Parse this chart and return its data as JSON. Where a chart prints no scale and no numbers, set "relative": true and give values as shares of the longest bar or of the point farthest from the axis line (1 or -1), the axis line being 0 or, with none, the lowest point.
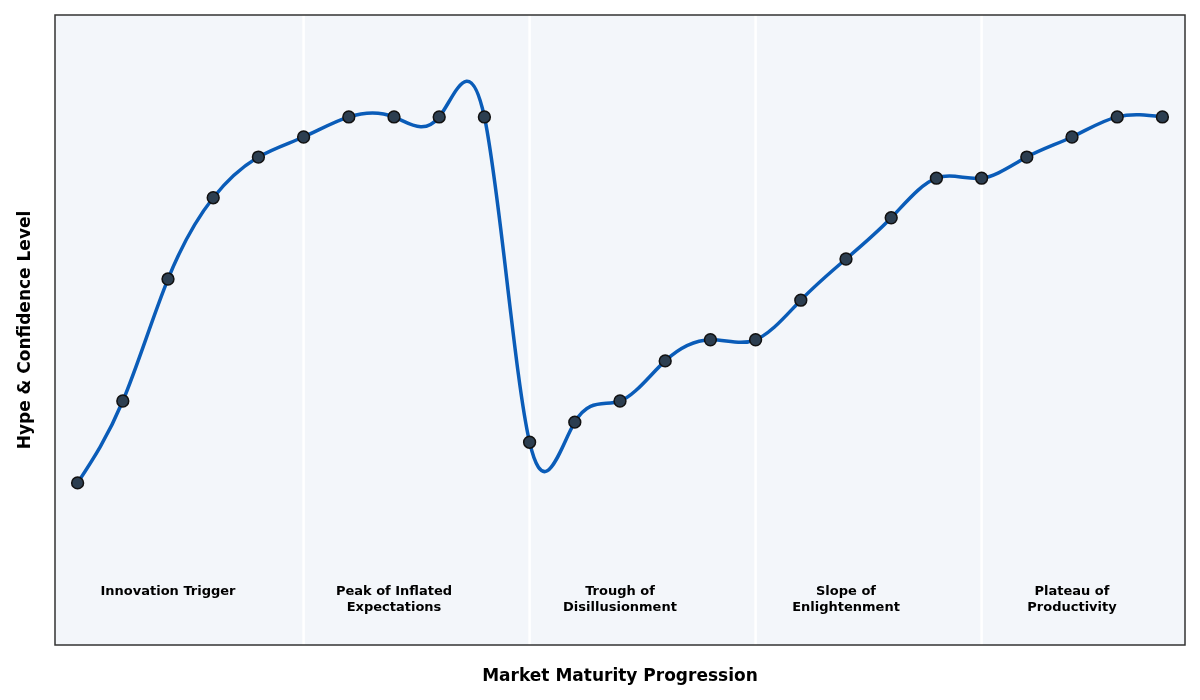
{
  "chart_data": {
    "type": "line",
    "relative": true,
    "xlabel": "Market Maturity Progression",
    "ylabel": "Hype & Confidence Level",
    "categories": [
      null,
      null,
      null,
      null,
      null,
      null,
      null,
      null,
      null,
      null,
      null,
      null,
      null,
      null,
      null,
      null,
      null,
      null,
      null,
      null,
      null,
      null,
      null,
      null,
      null
    ],
    "series": [
      {
        "color": "#0a5cb8",
        "values": [
          0.307,
          0.462,
          0.693,
          0.847,
          0.924,
          0.962,
          1,
          1,
          1,
          1,
          0.384,
          0.422,
          0.462,
          0.538,
          0.578,
          0.578,
          0.653,
          0.731,
          0.809,
          0.884,
          0.884,
          0.924,
          0.962,
          1,
          1
        ]
      }
    ],
    "annotations": [
      "Innovation Trigger",
      "Peak of Inflated\nExpectations",
      "Trough of\nDisillusionment",
      "Slope of\nEnlightenment",
      "Plateau of\nProductivity"
    ],
    "marker": "circle",
    "line_style": "solid",
    "grid": "x"
  }
}
